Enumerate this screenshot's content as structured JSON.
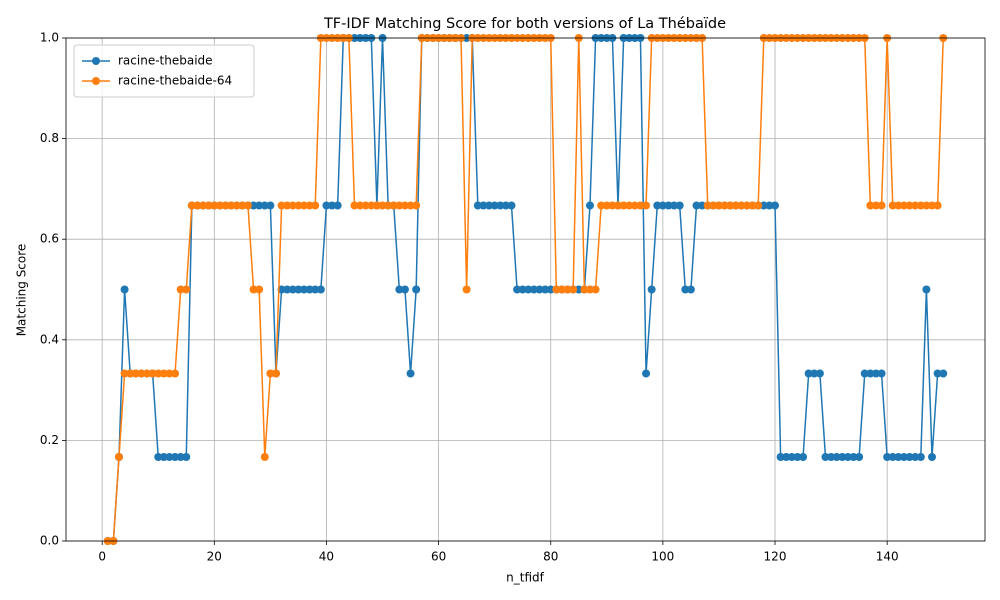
{
  "chart_data": {
    "type": "line",
    "title": "TF-IDF Matching Score for both versions of La Thébaïde",
    "x_label": "n_tfidf",
    "y_label": "Matching Score",
    "x": [
      1,
      2,
      3,
      4,
      5,
      6,
      7,
      8,
      9,
      10,
      11,
      12,
      13,
      14,
      15,
      16,
      17,
      18,
      19,
      20,
      21,
      22,
      23,
      24,
      25,
      26,
      27,
      28,
      29,
      30,
      31,
      32,
      33,
      34,
      35,
      36,
      37,
      38,
      39,
      40,
      41,
      42,
      43,
      44,
      45,
      46,
      47,
      48,
      49,
      50,
      51,
      52,
      53,
      54,
      55,
      56,
      57,
      58,
      59,
      60,
      61,
      62,
      63,
      64,
      65,
      66,
      67,
      68,
      69,
      70,
      71,
      72,
      73,
      74,
      75,
      76,
      77,
      78,
      79,
      80,
      81,
      82,
      83,
      84,
      85,
      86,
      87,
      88,
      89,
      90,
      91,
      92,
      93,
      94,
      95,
      96,
      97,
      98,
      99,
      100,
      101,
      102,
      103,
      104,
      105,
      106,
      107,
      108,
      109,
      110,
      111,
      112,
      113,
      114,
      115,
      116,
      117,
      118,
      119,
      120,
      121,
      122,
      123,
      124,
      125,
      126,
      127,
      128,
      129,
      130,
      131,
      132,
      133,
      134,
      135,
      136,
      137,
      138,
      139,
      140,
      141,
      142,
      143,
      144,
      145,
      146,
      147,
      148,
      149,
      150
    ],
    "series": [
      {
        "name": "racine-thebaide",
        "color": "#1f77b4",
        "values": [
          0,
          0,
          0.167,
          0.5,
          0.333,
          0.333,
          0.333,
          0.333,
          0.333,
          0.167,
          0.167,
          0.167,
          0.167,
          0.167,
          0.167,
          0.667,
          0.667,
          0.667,
          0.667,
          0.667,
          0.667,
          0.667,
          0.667,
          0.667,
          0.667,
          0.667,
          0.667,
          0.667,
          0.667,
          0.667,
          0.333,
          0.5,
          0.5,
          0.5,
          0.5,
          0.5,
          0.5,
          0.5,
          0.5,
          0.667,
          0.667,
          0.667,
          1,
          1,
          1,
          1,
          1,
          1,
          0.667,
          1,
          0.667,
          0.667,
          0.5,
          0.5,
          0.333,
          0.5,
          1,
          1,
          1,
          1,
          1,
          1,
          1,
          1,
          1,
          1,
          0.667,
          0.667,
          0.667,
          0.667,
          0.667,
          0.667,
          0.667,
          0.5,
          0.5,
          0.5,
          0.5,
          0.5,
          0.5,
          0.5,
          0.5,
          0.5,
          0.5,
          0.5,
          0.5,
          0.5,
          0.667,
          1,
          1,
          1,
          1,
          0.667,
          1,
          1,
          1,
          1,
          0.333,
          0.5,
          0.667,
          0.667,
          0.667,
          0.667,
          0.667,
          0.5,
          0.5,
          0.667,
          0.667,
          0.667,
          0.667,
          0.667,
          0.667,
          0.667,
          0.667,
          0.667,
          0.667,
          0.667,
          0.667,
          0.667,
          0.667,
          0.667,
          0.167,
          0.167,
          0.167,
          0.167,
          0.167,
          0.333,
          0.333,
          0.333,
          0.167,
          0.167,
          0.167,
          0.167,
          0.167,
          0.167,
          0.167,
          0.333,
          0.333,
          0.333,
          0.333,
          0.167,
          0.167,
          0.167,
          0.167,
          0.167,
          0.167,
          0.167,
          0.5,
          0.167,
          0.333,
          0.333
        ]
      },
      {
        "name": "racine-thebaide-64",
        "color": "#ff7f0e",
        "values": [
          0,
          0,
          0.167,
          0.333,
          0.333,
          0.333,
          0.333,
          0.333,
          0.333,
          0.333,
          0.333,
          0.333,
          0.333,
          0.5,
          0.5,
          0.667,
          0.667,
          0.667,
          0.667,
          0.667,
          0.667,
          0.667,
          0.667,
          0.667,
          0.667,
          0.667,
          0.5,
          0.5,
          0.167,
          0.333,
          0.333,
          0.667,
          0.667,
          0.667,
          0.667,
          0.667,
          0.667,
          0.667,
          1,
          1,
          1,
          1,
          1,
          1,
          0.667,
          0.667,
          0.667,
          0.667,
          0.667,
          0.667,
          0.667,
          0.667,
          0.667,
          0.667,
          0.667,
          0.667,
          1,
          1,
          1,
          1,
          1,
          1,
          1,
          1,
          0.5,
          1,
          1,
          1,
          1,
          1,
          1,
          1,
          1,
          1,
          1,
          1,
          1,
          1,
          1,
          1,
          0.5,
          0.5,
          0.5,
          0.5,
          1,
          0.5,
          0.5,
          0.5,
          0.667,
          0.667,
          0.667,
          0.667,
          0.667,
          0.667,
          0.667,
          0.667,
          0.667,
          1,
          1,
          1,
          1,
          1,
          1,
          1,
          1,
          1,
          1,
          0.667,
          0.667,
          0.667,
          0.667,
          0.667,
          0.667,
          0.667,
          0.667,
          0.667,
          0.667,
          1,
          1,
          1,
          1,
          1,
          1,
          1,
          1,
          1,
          1,
          1,
          1,
          1,
          1,
          1,
          1,
          1,
          1,
          1,
          0.667,
          0.667,
          0.667,
          1,
          0.667,
          0.667,
          0.667,
          0.667,
          0.667,
          0.667,
          0.667,
          0.667,
          0.667,
          1
        ]
      }
    ],
    "xlim": [
      -6.45,
      157.45
    ],
    "ylim": [
      0,
      1
    ],
    "xticks": [
      0,
      20,
      40,
      60,
      80,
      100,
      120,
      140
    ],
    "yticks": [
      {
        "value": 0,
        "label": "0.0"
      },
      {
        "value": 0.2,
        "label": "0.2"
      },
      {
        "value": 0.4,
        "label": "0.4"
      },
      {
        "value": 0.6,
        "label": "0.6"
      },
      {
        "value": 0.8,
        "label": "0.8"
      },
      {
        "value": 1,
        "label": "1.0"
      }
    ],
    "grid": true,
    "legend": "upper-left"
  }
}
